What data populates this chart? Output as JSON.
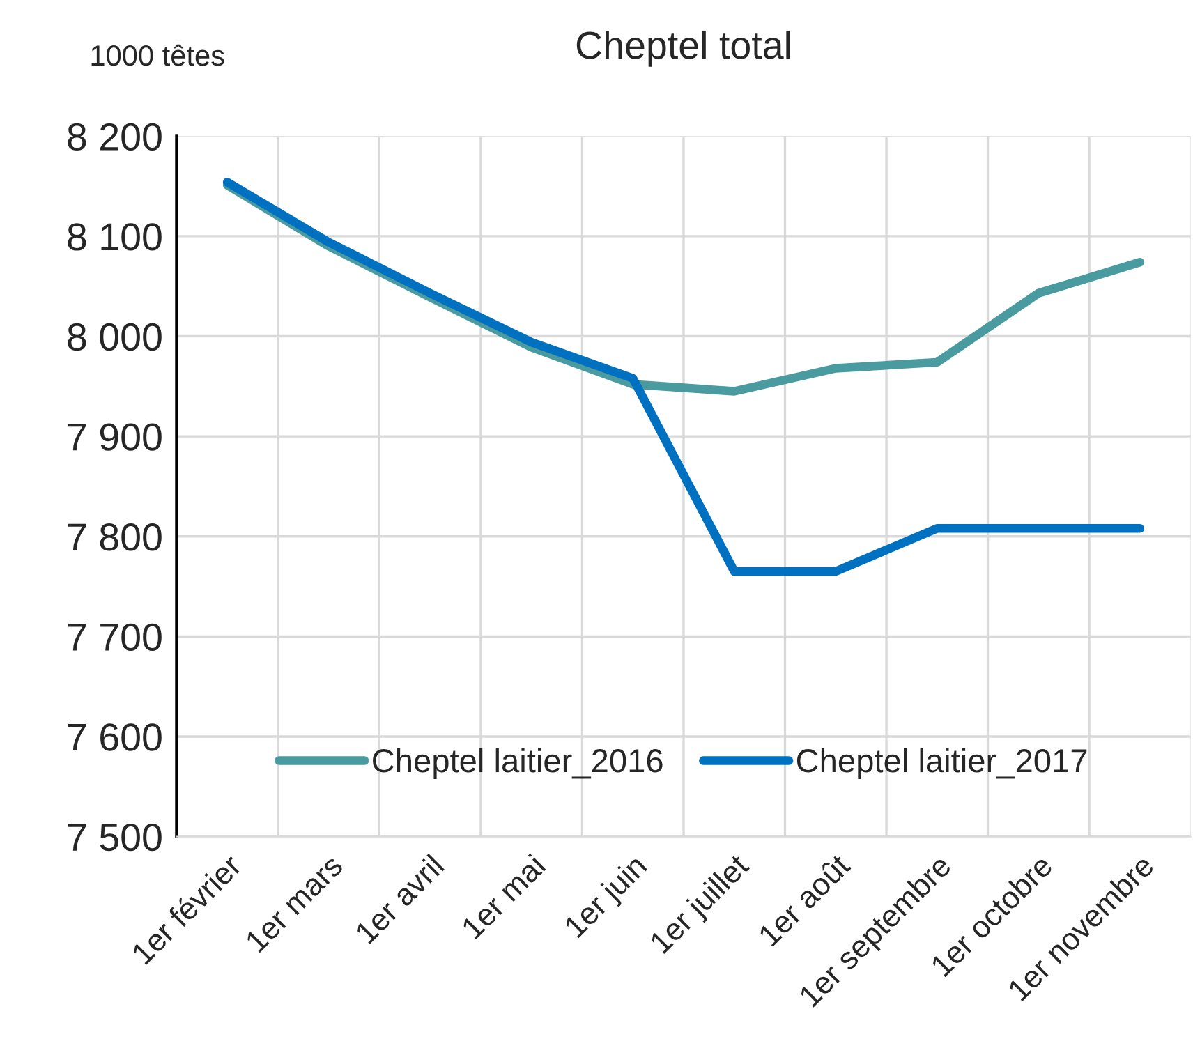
{
  "chart_data": {
    "type": "line",
    "title": "Cheptel total",
    "ylabel": "1000 têtes",
    "categories": [
      "1er février",
      "1er mars",
      "1er avril",
      "1er mai",
      "1er juin",
      "1er juillet",
      "1er août",
      "1er septembre",
      "1er octobre",
      "1er novembre"
    ],
    "series": [
      {
        "name": "Cheptel laitier_2016",
        "color": "#4a9ba0",
        "values": [
          8151,
          8090,
          8039,
          7989,
          7952,
          7945,
          7968,
          7974,
          8043,
          8074
        ]
      },
      {
        "name": "Cheptel laitier_2017",
        "color": "#0070c0",
        "values": [
          8154,
          8094,
          8043,
          7994,
          7958,
          7765,
          7765,
          7808,
          7808,
          7808
        ]
      }
    ],
    "ylim": [
      7500,
      8200
    ],
    "yticks": [
      {
        "value": 7500,
        "label": "7 500"
      },
      {
        "value": 7600,
        "label": "7 600"
      },
      {
        "value": 7700,
        "label": "7 700"
      },
      {
        "value": 7800,
        "label": "7 800"
      },
      {
        "value": 7900,
        "label": "7 900"
      },
      {
        "value": 8000,
        "label": "8 000"
      },
      {
        "value": 8100,
        "label": "8 100"
      },
      {
        "value": 8200,
        "label": "8 200"
      }
    ],
    "grid": true,
    "legend": "bottom",
    "marker": "none",
    "line_style": "solid"
  }
}
